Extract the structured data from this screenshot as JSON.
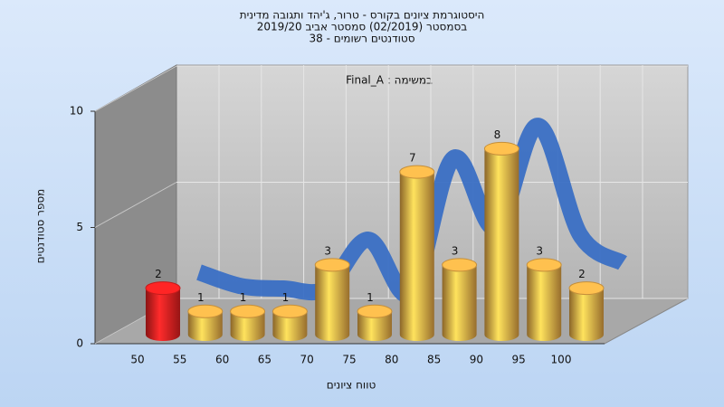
{
  "chart_data": {
    "type": "bar",
    "title": [
      "היסטוגרמת ציונים בקורס - טרור, ג'יהד ותגובה מדינית",
      "בסמסטר  (02/2019)  סמסטר אביב 2019/20",
      "סטודנטים רשומים - 38"
    ],
    "annotation": "Final_A : במשימה",
    "x_label": "טווח ציונים",
    "y_label": "מספר סטודנטים",
    "categories": [
      "50",
      "55",
      "60",
      "65",
      "70",
      "75",
      "80",
      "85",
      "90",
      "95",
      "100"
    ],
    "values": [
      2,
      1,
      1,
      1,
      3,
      1,
      7,
      3,
      8,
      3,
      2
    ],
    "colors": [
      "#e82020",
      "#e8a845",
      "#e8a845",
      "#e8a845",
      "#e8a845",
      "#e8a845",
      "#e8a845",
      "#e8a845",
      "#e8a845",
      "#e8a845",
      "#e8a845"
    ],
    "curve": {
      "color": "#3a6fc4",
      "values": [
        2.1,
        1.5,
        1.4,
        1.4,
        3.5,
        1.2,
        7.0,
        4.0,
        8.4,
        3.7,
        2.5
      ]
    },
    "ylim": [
      0,
      10
    ],
    "yticks": [
      0,
      5,
      10
    ],
    "grid": true
  }
}
